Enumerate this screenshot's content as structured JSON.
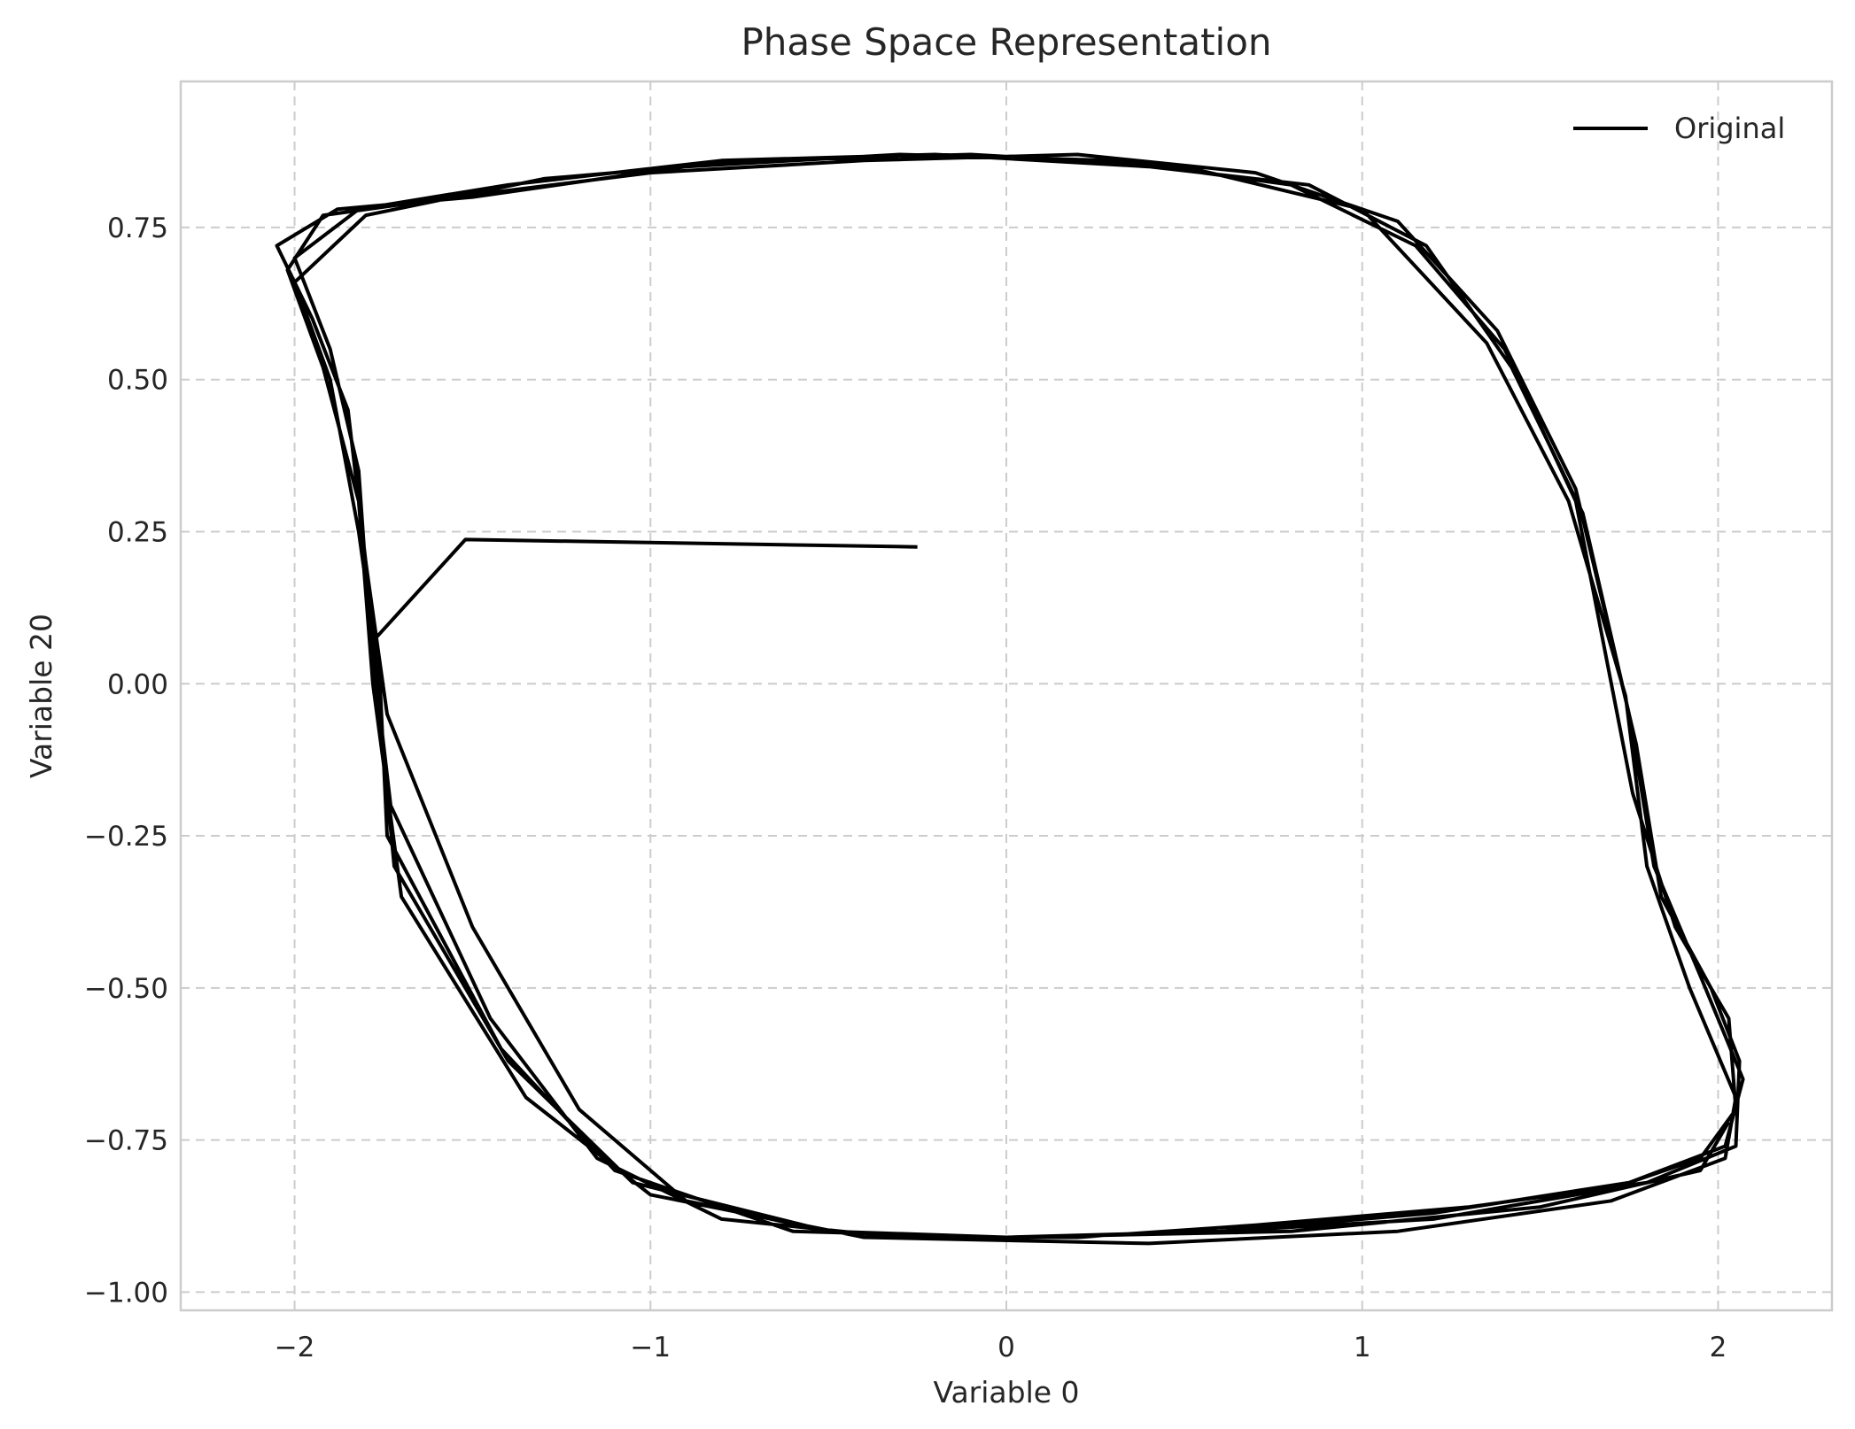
{
  "chart_data": {
    "type": "line",
    "title": "Phase Space Representation",
    "xlabel": "Variable 0",
    "ylabel": "Variable 20",
    "xlim": [
      -2.32,
      2.32
    ],
    "ylim": [
      -1.03,
      0.99
    ],
    "xticks": [
      -2,
      -1,
      0,
      1,
      2
    ],
    "xtick_labels": [
      "−2",
      "−1",
      "0",
      "1",
      "2"
    ],
    "yticks": [
      -1.0,
      -0.75,
      -0.5,
      -0.25,
      0.0,
      0.25,
      0.5,
      0.75
    ],
    "ytick_labels": [
      "−1.00",
      "−0.75",
      "−0.50",
      "−0.25",
      "0.00",
      "0.25",
      "0.50",
      "0.75"
    ],
    "grid": true,
    "legend_position": "top-right",
    "series": [
      {
        "name": "Original",
        "color": "#000000",
        "x": [
          -0.25,
          -1.52,
          -1.78,
          -1.72,
          -1.4,
          -1.05,
          -0.5,
          0.0,
          0.6,
          1.2,
          1.7,
          1.95,
          2.05,
          2.03,
          1.88,
          1.76,
          1.6,
          1.4,
          1.15,
          0.8,
          0.3,
          -0.3,
          -0.9,
          -1.5,
          -1.88,
          -2.05,
          -1.95,
          -1.85,
          -1.8,
          -1.74,
          -1.5,
          -1.2,
          -0.9,
          -0.5,
          0.0,
          0.6,
          1.2,
          1.75,
          2.02,
          2.07,
          1.95,
          1.82,
          1.75,
          1.62,
          1.42,
          1.18,
          0.85,
          0.4,
          -0.2,
          -0.8,
          -1.4,
          -1.82,
          -2.0,
          -1.9,
          -1.82,
          -1.79,
          -1.73,
          -1.45,
          -1.15,
          -0.8,
          -0.3,
          0.2,
          0.7,
          1.3,
          1.8,
          2.05,
          2.06,
          1.98,
          1.84,
          1.77,
          1.6,
          1.38,
          1.1,
          0.7,
          0.2,
          -0.4,
          -1.0,
          -1.55,
          -1.92,
          -2.02,
          -1.92,
          -1.82,
          -1.78,
          -1.7,
          -1.35,
          -1.0,
          -0.4,
          0.4,
          1.1,
          1.7,
          2.02,
          2.05,
          1.92,
          1.8,
          1.74,
          1.58,
          1.35,
          1.0,
          0.5,
          -0.1,
          -0.7,
          -1.3,
          -1.8,
          -2.0,
          -1.9,
          -1.82,
          -1.76,
          -1.74,
          -1.42,
          -1.1,
          -0.6,
          0.0,
          0.8,
          1.5,
          1.95,
          2.03
        ],
        "y": [
          0.225,
          0.237,
          0.07,
          -0.3,
          -0.62,
          -0.82,
          -0.9,
          -0.91,
          -0.9,
          -0.88,
          -0.83,
          -0.78,
          -0.7,
          -0.55,
          -0.4,
          -0.18,
          0.3,
          0.55,
          0.72,
          0.82,
          0.86,
          0.87,
          0.85,
          0.8,
          0.78,
          0.72,
          0.6,
          0.45,
          0.2,
          -0.05,
          -0.4,
          -0.7,
          -0.85,
          -0.9,
          -0.91,
          -0.9,
          -0.87,
          -0.82,
          -0.76,
          -0.65,
          -0.48,
          -0.3,
          -0.05,
          0.28,
          0.52,
          0.72,
          0.82,
          0.85,
          0.87,
          0.86,
          0.82,
          0.78,
          0.7,
          0.55,
          0.35,
          0.1,
          -0.2,
          -0.55,
          -0.78,
          -0.88,
          -0.91,
          -0.91,
          -0.89,
          -0.86,
          -0.82,
          -0.76,
          -0.62,
          -0.5,
          -0.35,
          -0.1,
          0.32,
          0.58,
          0.76,
          0.84,
          0.87,
          0.86,
          0.84,
          0.8,
          0.77,
          0.68,
          0.52,
          0.3,
          0.0,
          -0.35,
          -0.68,
          -0.84,
          -0.91,
          -0.92,
          -0.9,
          -0.85,
          -0.78,
          -0.68,
          -0.5,
          -0.3,
          -0.02,
          0.3,
          0.56,
          0.78,
          0.85,
          0.87,
          0.86,
          0.83,
          0.77,
          0.66,
          0.5,
          0.25,
          0.0,
          -0.25,
          -0.6,
          -0.8,
          -0.9,
          -0.91,
          -0.9,
          -0.86,
          -0.8,
          -0.72
        ]
      }
    ]
  }
}
